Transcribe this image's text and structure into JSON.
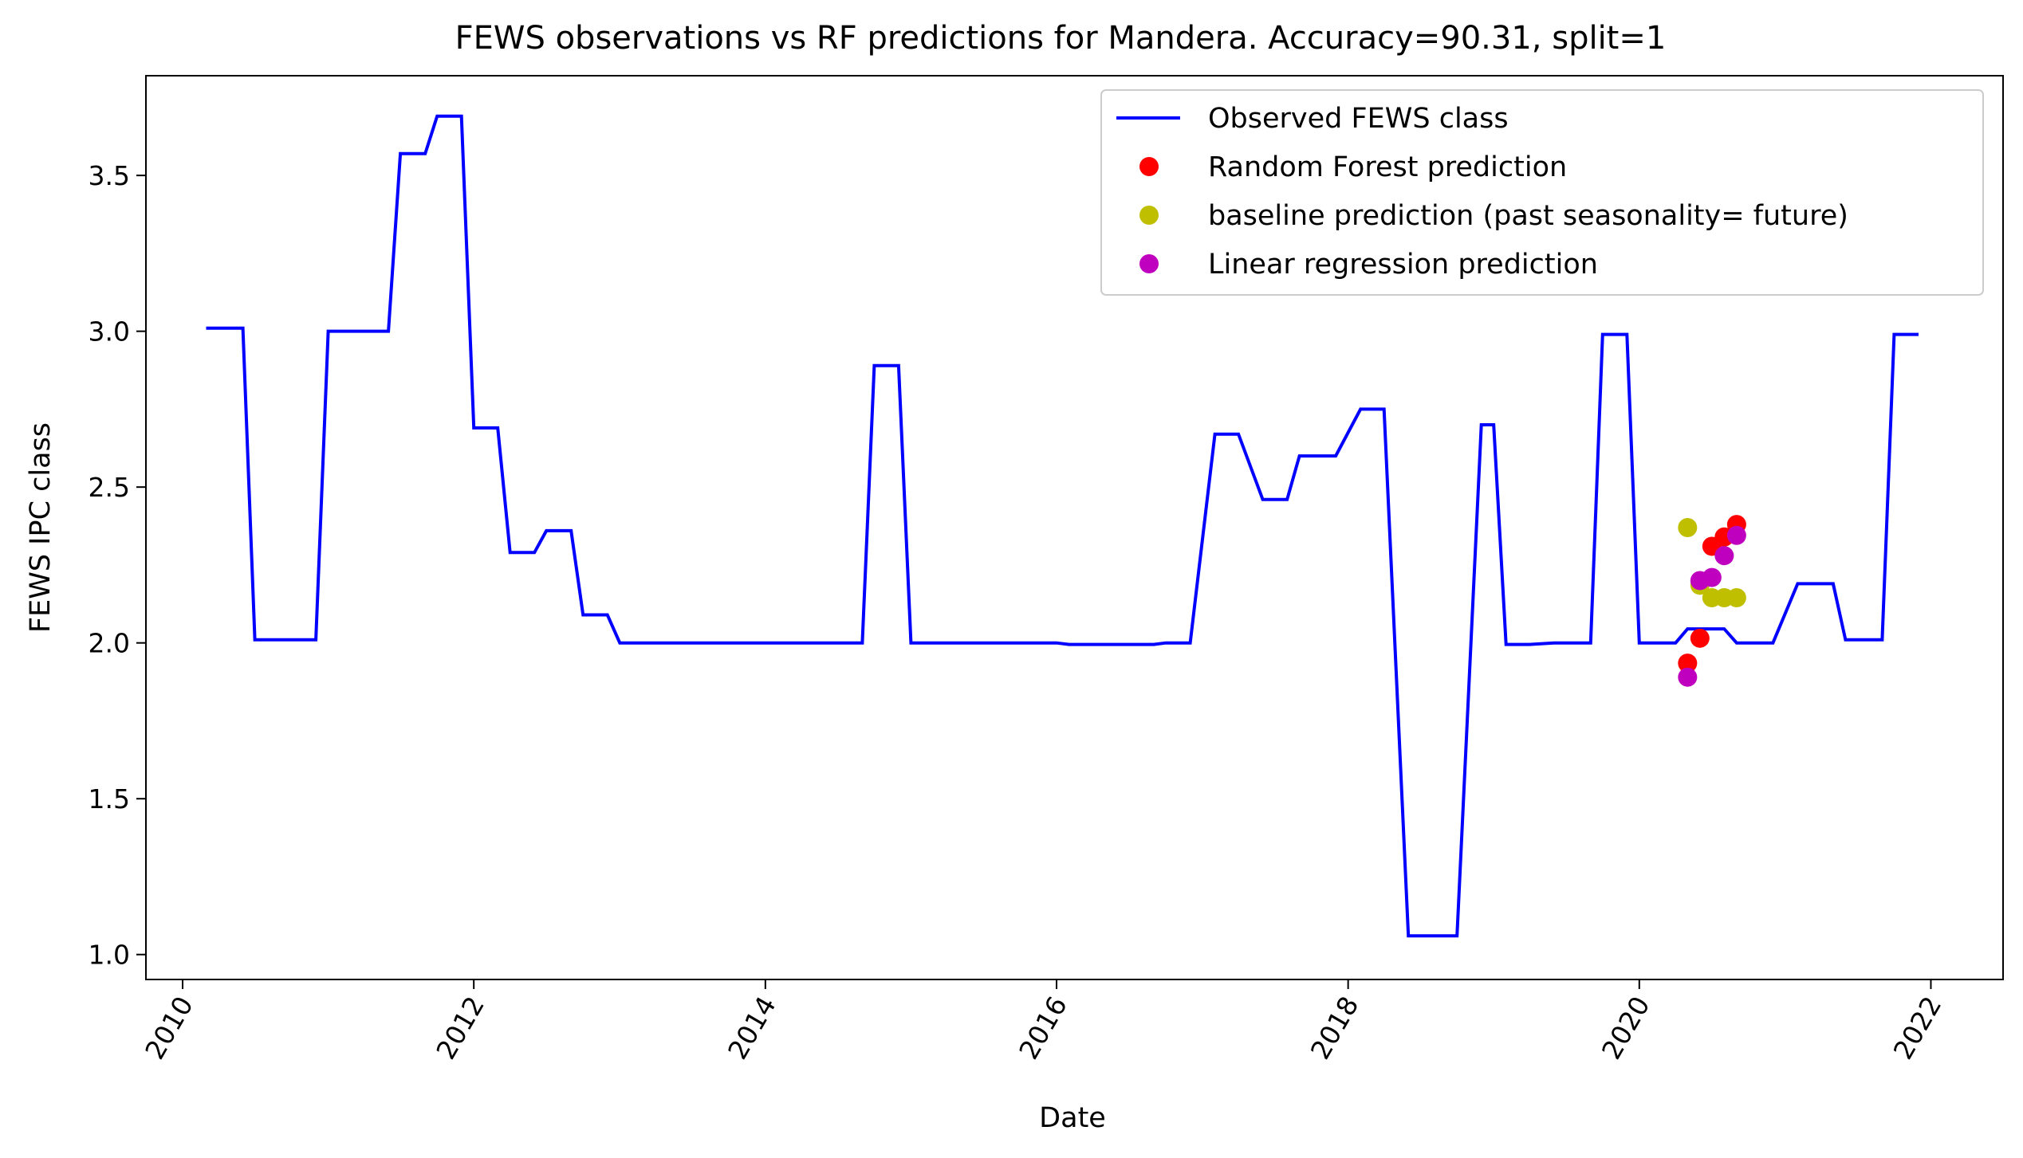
{
  "chart_data": {
    "type": "line",
    "title": "FEWS observations vs RF predictions for Mandera. Accuracy=90.31, split=1",
    "xlabel": "Date",
    "ylabel": "FEWS IPC class",
    "x_range": [
      "2009-10-01",
      "2022-07-01"
    ],
    "ylim": [
      0.92,
      3.82
    ],
    "x_ticks": [
      "2010",
      "2012",
      "2014",
      "2016",
      "2018",
      "2020",
      "2022"
    ],
    "x_tick_dates": [
      "2010-01-01",
      "2012-01-01",
      "2014-01-01",
      "2016-01-01",
      "2018-01-01",
      "2020-01-01",
      "2022-01-01"
    ],
    "y_ticks": [
      "1.0",
      "1.5",
      "2.0",
      "2.5",
      "3.0",
      "3.5"
    ],
    "y_tick_values": [
      1.0,
      1.5,
      2.0,
      2.5,
      3.0,
      3.5
    ],
    "grid": false,
    "legend_position": "upper right",
    "series": [
      {
        "name": "Observed FEWS class",
        "kind": "line",
        "color": "#0000ff",
        "points": [
          [
            "2010-03-01",
            3.01
          ],
          [
            "2010-06-01",
            3.01
          ],
          [
            "2010-07-01",
            2.01
          ],
          [
            "2010-12-01",
            2.01
          ],
          [
            "2011-01-01",
            3.0
          ],
          [
            "2011-06-01",
            3.0
          ],
          [
            "2011-07-01",
            3.57
          ],
          [
            "2011-09-01",
            3.57
          ],
          [
            "2011-10-01",
            3.69
          ],
          [
            "2011-12-01",
            3.69
          ],
          [
            "2012-01-01",
            2.69
          ],
          [
            "2012-03-01",
            2.69
          ],
          [
            "2012-04-01",
            2.29
          ],
          [
            "2012-06-01",
            2.29
          ],
          [
            "2012-07-01",
            2.36
          ],
          [
            "2012-09-01",
            2.36
          ],
          [
            "2012-10-01",
            2.09
          ],
          [
            "2012-12-01",
            2.09
          ],
          [
            "2013-01-01",
            2.0
          ],
          [
            "2014-09-01",
            2.0
          ],
          [
            "2014-10-01",
            2.89
          ],
          [
            "2014-12-01",
            2.89
          ],
          [
            "2015-01-01",
            2.0
          ],
          [
            "2016-01-01",
            2.0
          ],
          [
            "2016-02-01",
            1.995
          ],
          [
            "2016-09-01",
            1.995
          ],
          [
            "2016-10-01",
            2.0
          ],
          [
            "2016-12-01",
            2.0
          ],
          [
            "2017-02-01",
            2.67
          ],
          [
            "2017-04-01",
            2.67
          ],
          [
            "2017-06-01",
            2.46
          ],
          [
            "2017-08-01",
            2.46
          ],
          [
            "2017-09-01",
            2.6
          ],
          [
            "2017-12-01",
            2.6
          ],
          [
            "2018-02-01",
            2.75
          ],
          [
            "2018-04-01",
            2.75
          ],
          [
            "2018-06-01",
            1.06
          ],
          [
            "2018-10-01",
            1.06
          ],
          [
            "2018-12-01",
            2.7
          ],
          [
            "2019-01-01",
            2.7
          ],
          [
            "2019-02-01",
            1.995
          ],
          [
            "2019-04-01",
            1.995
          ],
          [
            "2019-06-01",
            2.0
          ],
          [
            "2019-09-01",
            2.0
          ],
          [
            "2019-10-01",
            2.99
          ],
          [
            "2019-12-01",
            2.99
          ],
          [
            "2020-01-01",
            2.0
          ],
          [
            "2020-04-01",
            2.0
          ],
          [
            "2020-05-01",
            2.045
          ],
          [
            "2020-08-01",
            2.045
          ],
          [
            "2020-09-01",
            2.0
          ],
          [
            "2020-12-01",
            2.0
          ],
          [
            "2021-02-01",
            2.19
          ],
          [
            "2021-05-01",
            2.19
          ],
          [
            "2021-06-01",
            2.01
          ],
          [
            "2021-09-01",
            2.01
          ],
          [
            "2021-10-01",
            2.99
          ],
          [
            "2021-12-01",
            2.99
          ]
        ]
      },
      {
        "name": "Random Forest prediction",
        "kind": "scatter",
        "color": "#ff0000",
        "points": [
          [
            "2020-05-01",
            1.935
          ],
          [
            "2020-06-01",
            2.015
          ],
          [
            "2020-07-01",
            2.31
          ],
          [
            "2020-08-01",
            2.34
          ],
          [
            "2020-09-01",
            2.38
          ]
        ]
      },
      {
        "name": "baseline prediction (past seasonality= future)",
        "kind": "scatter",
        "color": "#bfbf00",
        "points": [
          [
            "2020-05-01",
            2.37
          ],
          [
            "2020-06-01",
            2.185
          ],
          [
            "2020-07-01",
            2.145
          ],
          [
            "2020-08-01",
            2.145
          ],
          [
            "2020-09-01",
            2.145
          ]
        ]
      },
      {
        "name": "Linear regression prediction",
        "kind": "scatter",
        "color": "#bf00bf",
        "points": [
          [
            "2020-05-01",
            1.89
          ],
          [
            "2020-06-01",
            2.2
          ],
          [
            "2020-07-01",
            2.21
          ],
          [
            "2020-08-01",
            2.28
          ],
          [
            "2020-09-01",
            2.345
          ]
        ]
      }
    ]
  }
}
